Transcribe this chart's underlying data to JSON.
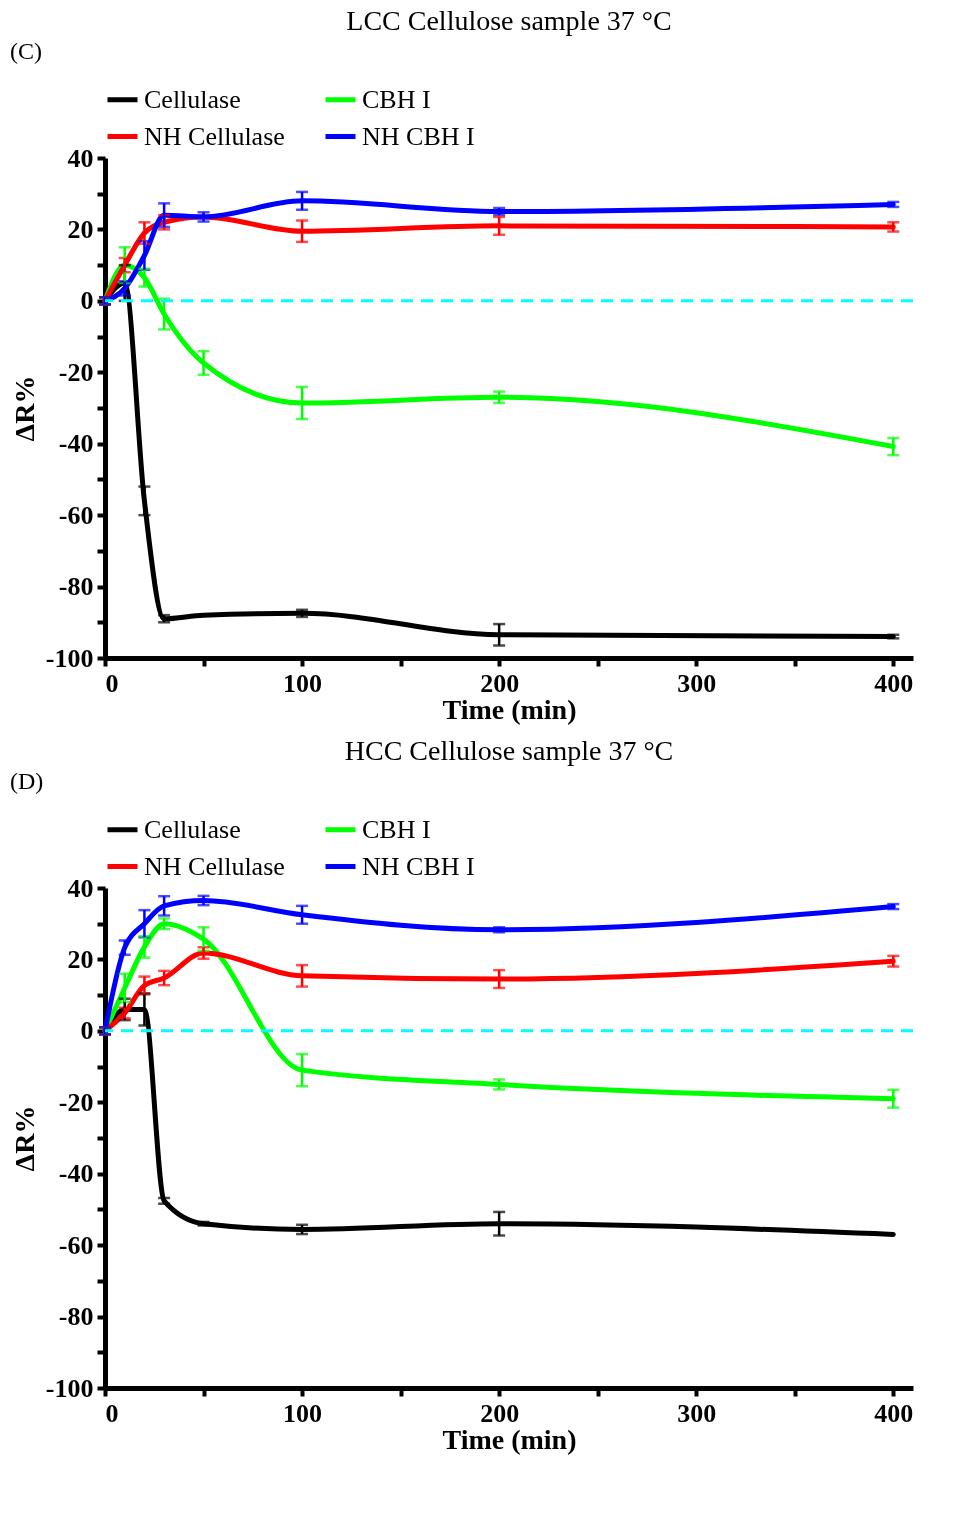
{
  "chart_data": [
    {
      "type": "line",
      "title": "LCC Cellulose sample 37 °C",
      "xlabel": "Time (min)",
      "ylabel": "ΔR%",
      "annotations": [
        "(C)"
      ],
      "x": [
        0,
        10,
        20,
        30,
        50,
        100,
        200,
        400
      ],
      "series": [
        {
          "name": "Cellulase",
          "color": "#000000",
          "values": [
            0,
            5,
            -56,
            -89,
            -88,
            -87.5,
            -93.5,
            -94
          ],
          "errors": [
            1,
            5,
            4,
            1,
            null,
            1,
            3,
            0.5
          ]
        },
        {
          "name": "CBH I",
          "color": "#00ff00",
          "values": [
            0,
            10,
            6.5,
            -3.7,
            -17.4,
            -28.6,
            -27,
            -40.8
          ],
          "errors": [
            1,
            5,
            2.5,
            4.3,
            3.3,
            4.5,
            1.6,
            2.4
          ]
        },
        {
          "name": "NH Cellulase",
          "color": "#ff0000",
          "values": [
            0,
            10,
            19,
            22,
            23.5,
            19.5,
            21,
            20.7
          ],
          "errors": [
            1,
            2,
            3,
            2,
            null,
            3,
            2.5,
            1.3
          ]
        },
        {
          "name": "NH CBH I",
          "color": "#0000ff",
          "values": [
            0,
            3.5,
            12.7,
            24,
            23.5,
            28,
            25,
            27
          ],
          "errors": [
            1,
            2,
            4,
            3.3,
            1.3,
            2.5,
            1,
            0.7
          ]
        }
      ],
      "ref_lines": [
        {
          "axis": "y",
          "value": 0,
          "color": "#00ffff",
          "line_style": "dashed"
        }
      ],
      "xlim": [
        0,
        410
      ],
      "xticks": [
        0,
        {
          "value": 50,
          "label": null
        },
        100,
        {
          "value": 150,
          "label": null
        },
        200,
        {
          "value": 250,
          "label": null
        },
        300,
        {
          "value": 350,
          "label": null
        },
        400
      ],
      "ylim": [
        -100,
        40
      ],
      "yticks": [
        -100,
        {
          "value": -90,
          "label": null
        },
        -80,
        {
          "value": -70,
          "label": null
        },
        -60,
        {
          "value": -50,
          "label": null
        },
        -40,
        {
          "value": -30,
          "label": null
        },
        -20,
        {
          "value": -10,
          "label": null
        },
        0,
        {
          "value": 10,
          "label": null
        },
        20,
        {
          "value": 30,
          "label": null
        },
        40
      ],
      "grid": false,
      "legend": "top",
      "marker": "none",
      "line_style": "solid"
    },
    {
      "type": "line",
      "title": "HCC Cellulose sample 37 °C",
      "xlabel": "Time (min)",
      "ylabel": "ΔR%",
      "annotations": [
        "(D)"
      ],
      "x": [
        0,
        10,
        20,
        30,
        50,
        100,
        200,
        400
      ],
      "series": [
        {
          "name": "Cellulase",
          "color": "#000000",
          "values": [
            0,
            6,
            6,
            -47.6,
            -54,
            -55.6,
            -54,
            -57
          ],
          "errors": [
            1,
            3,
            4.5,
            0.8,
            0.5,
            1.3,
            3.3,
            null
          ]
        },
        {
          "name": "CBH I",
          "color": "#00ff00",
          "values": [
            0,
            12,
            23.5,
            30,
            25.7,
            -11,
            -15,
            -19
          ],
          "errors": [
            1,
            4,
            3,
            1.5,
            3.3,
            4.5,
            1.4,
            2.5
          ]
        },
        {
          "name": "NH Cellulase",
          "color": "#ff0000",
          "values": [
            0,
            5,
            12.7,
            14.8,
            21.8,
            15.4,
            14.5,
            19.5
          ],
          "errors": [
            1,
            1.5,
            2.5,
            2,
            1.6,
            3,
            2.5,
            1.5
          ]
        },
        {
          "name": "NH CBH I",
          "color": "#0000ff",
          "values": [
            0,
            23.3,
            30,
            35,
            36.5,
            32.5,
            28.3,
            34.8
          ],
          "errors": [
            1,
            2,
            3.8,
            2.7,
            1.3,
            2.5,
            0.7,
            0.7
          ]
        }
      ],
      "ref_lines": [
        {
          "axis": "y",
          "value": 0,
          "color": "#00ffff",
          "line_style": "dashed"
        }
      ],
      "xlim": [
        0,
        410
      ],
      "xticks": [
        0,
        {
          "value": 50,
          "label": null
        },
        100,
        {
          "value": 150,
          "label": null
        },
        200,
        {
          "value": 250,
          "label": null
        },
        300,
        {
          "value": 350,
          "label": null
        },
        400
      ],
      "ylim": [
        -100,
        40
      ],
      "yticks": [
        -100,
        {
          "value": -90,
          "label": null
        },
        -80,
        {
          "value": -70,
          "label": null
        },
        -60,
        {
          "value": -50,
          "label": null
        },
        -40,
        {
          "value": -30,
          "label": null
        },
        -20,
        {
          "value": -10,
          "label": null
        },
        0,
        {
          "value": 10,
          "label": null
        },
        20,
        {
          "value": 30,
          "label": null
        },
        40
      ],
      "grid": false,
      "legend": "top",
      "marker": "none",
      "line_style": "solid"
    }
  ]
}
